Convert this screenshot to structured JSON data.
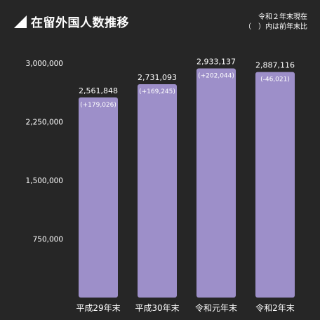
{
  "title": "在留外国人数推移",
  "note": {
    "line1": "令和２年末現在",
    "line2": "（　）内は前年末比"
  },
  "colors": {
    "background": "#262626",
    "bar": "#9d8fc9",
    "text": "#ffffff"
  },
  "chart_data": {
    "type": "bar",
    "title": "在留外国人数推移",
    "categories": [
      "平成29年末",
      "平成30年末",
      "令和元年末",
      "令和2年末"
    ],
    "values": [
      2561848,
      2731093,
      2933137,
      2887116
    ],
    "value_labels": [
      "2,561,848",
      "2,731,093",
      "2,933,137",
      "2,887,116"
    ],
    "change_labels": [
      "(+179,026)",
      "(+169,245)",
      "(+202,044)",
      "(-46,021)"
    ],
    "y_ticks": [
      750000,
      1500000,
      2250000,
      3000000
    ],
    "y_tick_labels": [
      "750,000",
      "1,500,000",
      "2,250,000",
      "3,000,000"
    ],
    "ylim": [
      0,
      3000000
    ],
    "grid": false,
    "legend": "none"
  }
}
